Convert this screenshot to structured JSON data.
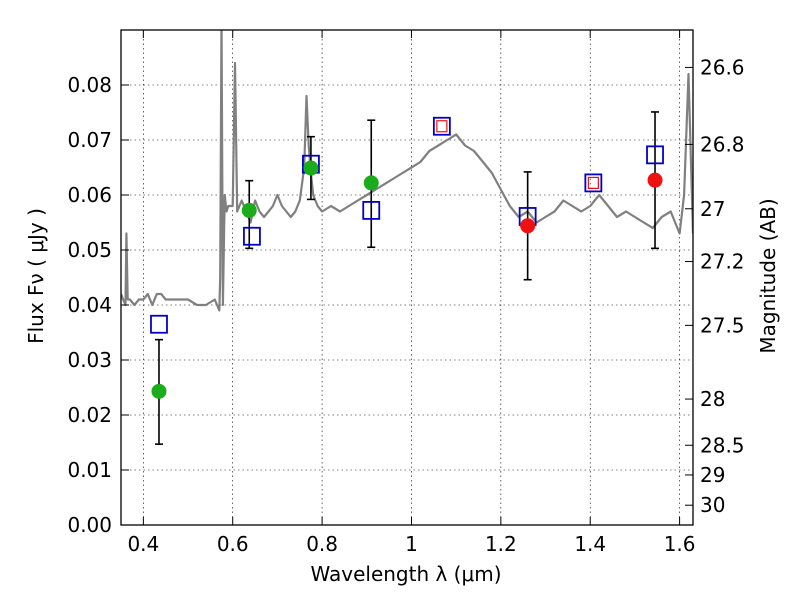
{
  "chart_data": {
    "type": "scatter",
    "xlabel": "Wavelength  λ (μm)",
    "ylabel": "Flux  Fν  ( μJy )",
    "ylabel_right": "Magnitude (AB)",
    "xlim": [
      0.35,
      1.63
    ],
    "ylim": [
      0.0,
      0.09
    ],
    "grid": true,
    "x_ticks": [
      0.4,
      0.6,
      0.8,
      1.0,
      1.2,
      1.4,
      1.6
    ],
    "x_tick_labels": [
      "0.4",
      "0.6",
      "0.8",
      "1",
      "1.2",
      "1.4",
      "1.6"
    ],
    "y_ticks": [
      0.0,
      0.01,
      0.02,
      0.03,
      0.04,
      0.05,
      0.06,
      0.07,
      0.08
    ],
    "y_tick_labels": [
      "0.00",
      "0.01",
      "0.02",
      "0.03",
      "0.04",
      "0.05",
      "0.06",
      "0.07",
      "0.08"
    ],
    "right_ticks": [
      {
        "label": "26.6",
        "flux": 0.0832
      },
      {
        "label": "26.8",
        "flux": 0.0692
      },
      {
        "label": "27",
        "flux": 0.0575
      },
      {
        "label": "27.2",
        "flux": 0.0479
      },
      {
        "label": "27.5",
        "flux": 0.0363
      },
      {
        "label": "28",
        "flux": 0.0229
      },
      {
        "label": "28.5",
        "flux": 0.0145
      },
      {
        "label": "29",
        "flux": 0.0091
      },
      {
        "label": "30",
        "flux": 0.0036
      }
    ],
    "spectrum": {
      "color": "#808080",
      "x": [
        0.35,
        0.355,
        0.36,
        0.362,
        0.365,
        0.37,
        0.38,
        0.39,
        0.4,
        0.41,
        0.42,
        0.43,
        0.44,
        0.45,
        0.46,
        0.48,
        0.5,
        0.52,
        0.54,
        0.56,
        0.57,
        0.572,
        0.575,
        0.578,
        0.582,
        0.586,
        0.59,
        0.6,
        0.605,
        0.61,
        0.615,
        0.62,
        0.63,
        0.64,
        0.65,
        0.66,
        0.67,
        0.68,
        0.69,
        0.7,
        0.71,
        0.72,
        0.73,
        0.74,
        0.75,
        0.76,
        0.765,
        0.77,
        0.775,
        0.78,
        0.79,
        0.8,
        0.82,
        0.84,
        0.86,
        0.88,
        0.9,
        0.92,
        0.94,
        0.96,
        0.98,
        1.0,
        1.02,
        1.04,
        1.06,
        1.08,
        1.1,
        1.12,
        1.14,
        1.16,
        1.18,
        1.2,
        1.22,
        1.24,
        1.26,
        1.28,
        1.3,
        1.32,
        1.34,
        1.36,
        1.38,
        1.4,
        1.42,
        1.44,
        1.46,
        1.48,
        1.5,
        1.52,
        1.54,
        1.56,
        1.58,
        1.6,
        1.61,
        1.62,
        1.63
      ],
      "y": [
        0.042,
        0.041,
        0.04,
        0.053,
        0.041,
        0.041,
        0.04,
        0.041,
        0.041,
        0.042,
        0.04,
        0.042,
        0.042,
        0.041,
        0.041,
        0.041,
        0.041,
        0.04,
        0.04,
        0.041,
        0.039,
        0.045,
        0.092,
        0.04,
        0.06,
        0.057,
        0.058,
        0.058,
        0.084,
        0.057,
        0.058,
        0.059,
        0.057,
        0.055,
        0.059,
        0.057,
        0.056,
        0.057,
        0.058,
        0.06,
        0.058,
        0.057,
        0.056,
        0.057,
        0.059,
        0.065,
        0.078,
        0.069,
        0.064,
        0.06,
        0.058,
        0.057,
        0.058,
        0.057,
        0.058,
        0.059,
        0.06,
        0.061,
        0.062,
        0.063,
        0.064,
        0.065,
        0.066,
        0.068,
        0.069,
        0.07,
        0.071,
        0.069,
        0.068,
        0.066,
        0.064,
        0.061,
        0.058,
        0.056,
        0.057,
        0.055,
        0.056,
        0.057,
        0.059,
        0.058,
        0.057,
        0.058,
        0.06,
        0.058,
        0.056,
        0.057,
        0.056,
        0.055,
        0.054,
        0.056,
        0.057,
        0.053,
        0.06,
        0.082,
        0.053
      ]
    },
    "errorbars": [
      {
        "x": 0.435,
        "y": 0.0243,
        "ylow": 0.0147,
        "yhigh": 0.0337
      },
      {
        "x": 0.637,
        "y": 0.0572,
        "ylow": 0.0503,
        "yhigh": 0.0626
      },
      {
        "x": 0.775,
        "y": 0.0649,
        "ylow": 0.0592,
        "yhigh": 0.0706
      },
      {
        "x": 0.91,
        "y": 0.0622,
        "ylow": 0.0505,
        "yhigh": 0.0736
      },
      {
        "x": 1.26,
        "y": 0.0544,
        "ylow": 0.0446,
        "yhigh": 0.0642
      },
      {
        "x": 1.545,
        "y": 0.0627,
        "ylow": 0.0503,
        "yhigh": 0.0751
      }
    ],
    "circles_green": {
      "color": "#1aac1a",
      "points": [
        [
          0.435,
          0.0243
        ],
        [
          0.637,
          0.0572
        ],
        [
          0.775,
          0.0649
        ],
        [
          0.91,
          0.0622
        ]
      ]
    },
    "circles_red": {
      "color": "#ee1111",
      "points": [
        [
          1.26,
          0.0544
        ],
        [
          1.545,
          0.0627
        ]
      ]
    },
    "squares_blue": {
      "color": "#0000cc",
      "points": [
        [
          0.435,
          0.0365
        ],
        [
          0.643,
          0.0525
        ],
        [
          0.775,
          0.0656
        ],
        [
          0.91,
          0.0572
        ],
        [
          1.068,
          0.0725
        ],
        [
          1.26,
          0.0561
        ],
        [
          1.407,
          0.0622
        ],
        [
          1.545,
          0.0673
        ]
      ]
    },
    "squares_red_inner": {
      "color": "#ee1111",
      "points": [
        [
          1.068,
          0.0725
        ],
        [
          1.407,
          0.0622
        ]
      ]
    }
  }
}
